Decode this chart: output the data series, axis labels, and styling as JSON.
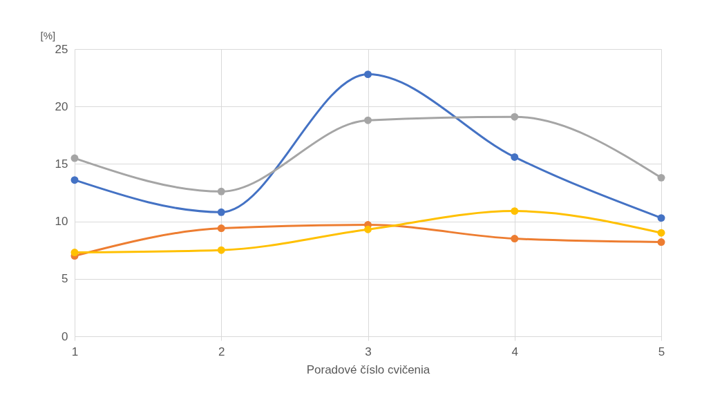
{
  "chart_data": {
    "type": "line",
    "xlabel": "Poradové číslo cvičenia",
    "ylabel": "[%]",
    "x": [
      1,
      2,
      3,
      4,
      5
    ],
    "xlim": [
      1,
      5
    ],
    "xticks": [
      1,
      2,
      3,
      4,
      5
    ],
    "ylim": [
      0,
      25
    ],
    "yticks": [
      0,
      5,
      10,
      15,
      20,
      25
    ],
    "grid": true,
    "legend": false,
    "marker": "circle",
    "line_style": "solid",
    "series": [
      {
        "color": "#4472c4",
        "values": [
          13.6,
          10.8,
          22.8,
          15.6,
          10.3
        ]
      },
      {
        "color": "#ed7d31",
        "values": [
          7.0,
          9.4,
          9.7,
          8.5,
          8.2
        ]
      },
      {
        "color": "#a5a5a5",
        "values": [
          15.5,
          12.6,
          18.8,
          19.1,
          13.8
        ]
      },
      {
        "color": "#ffc000",
        "values": [
          7.3,
          7.5,
          9.3,
          10.9,
          9.0
        ]
      }
    ]
  }
}
